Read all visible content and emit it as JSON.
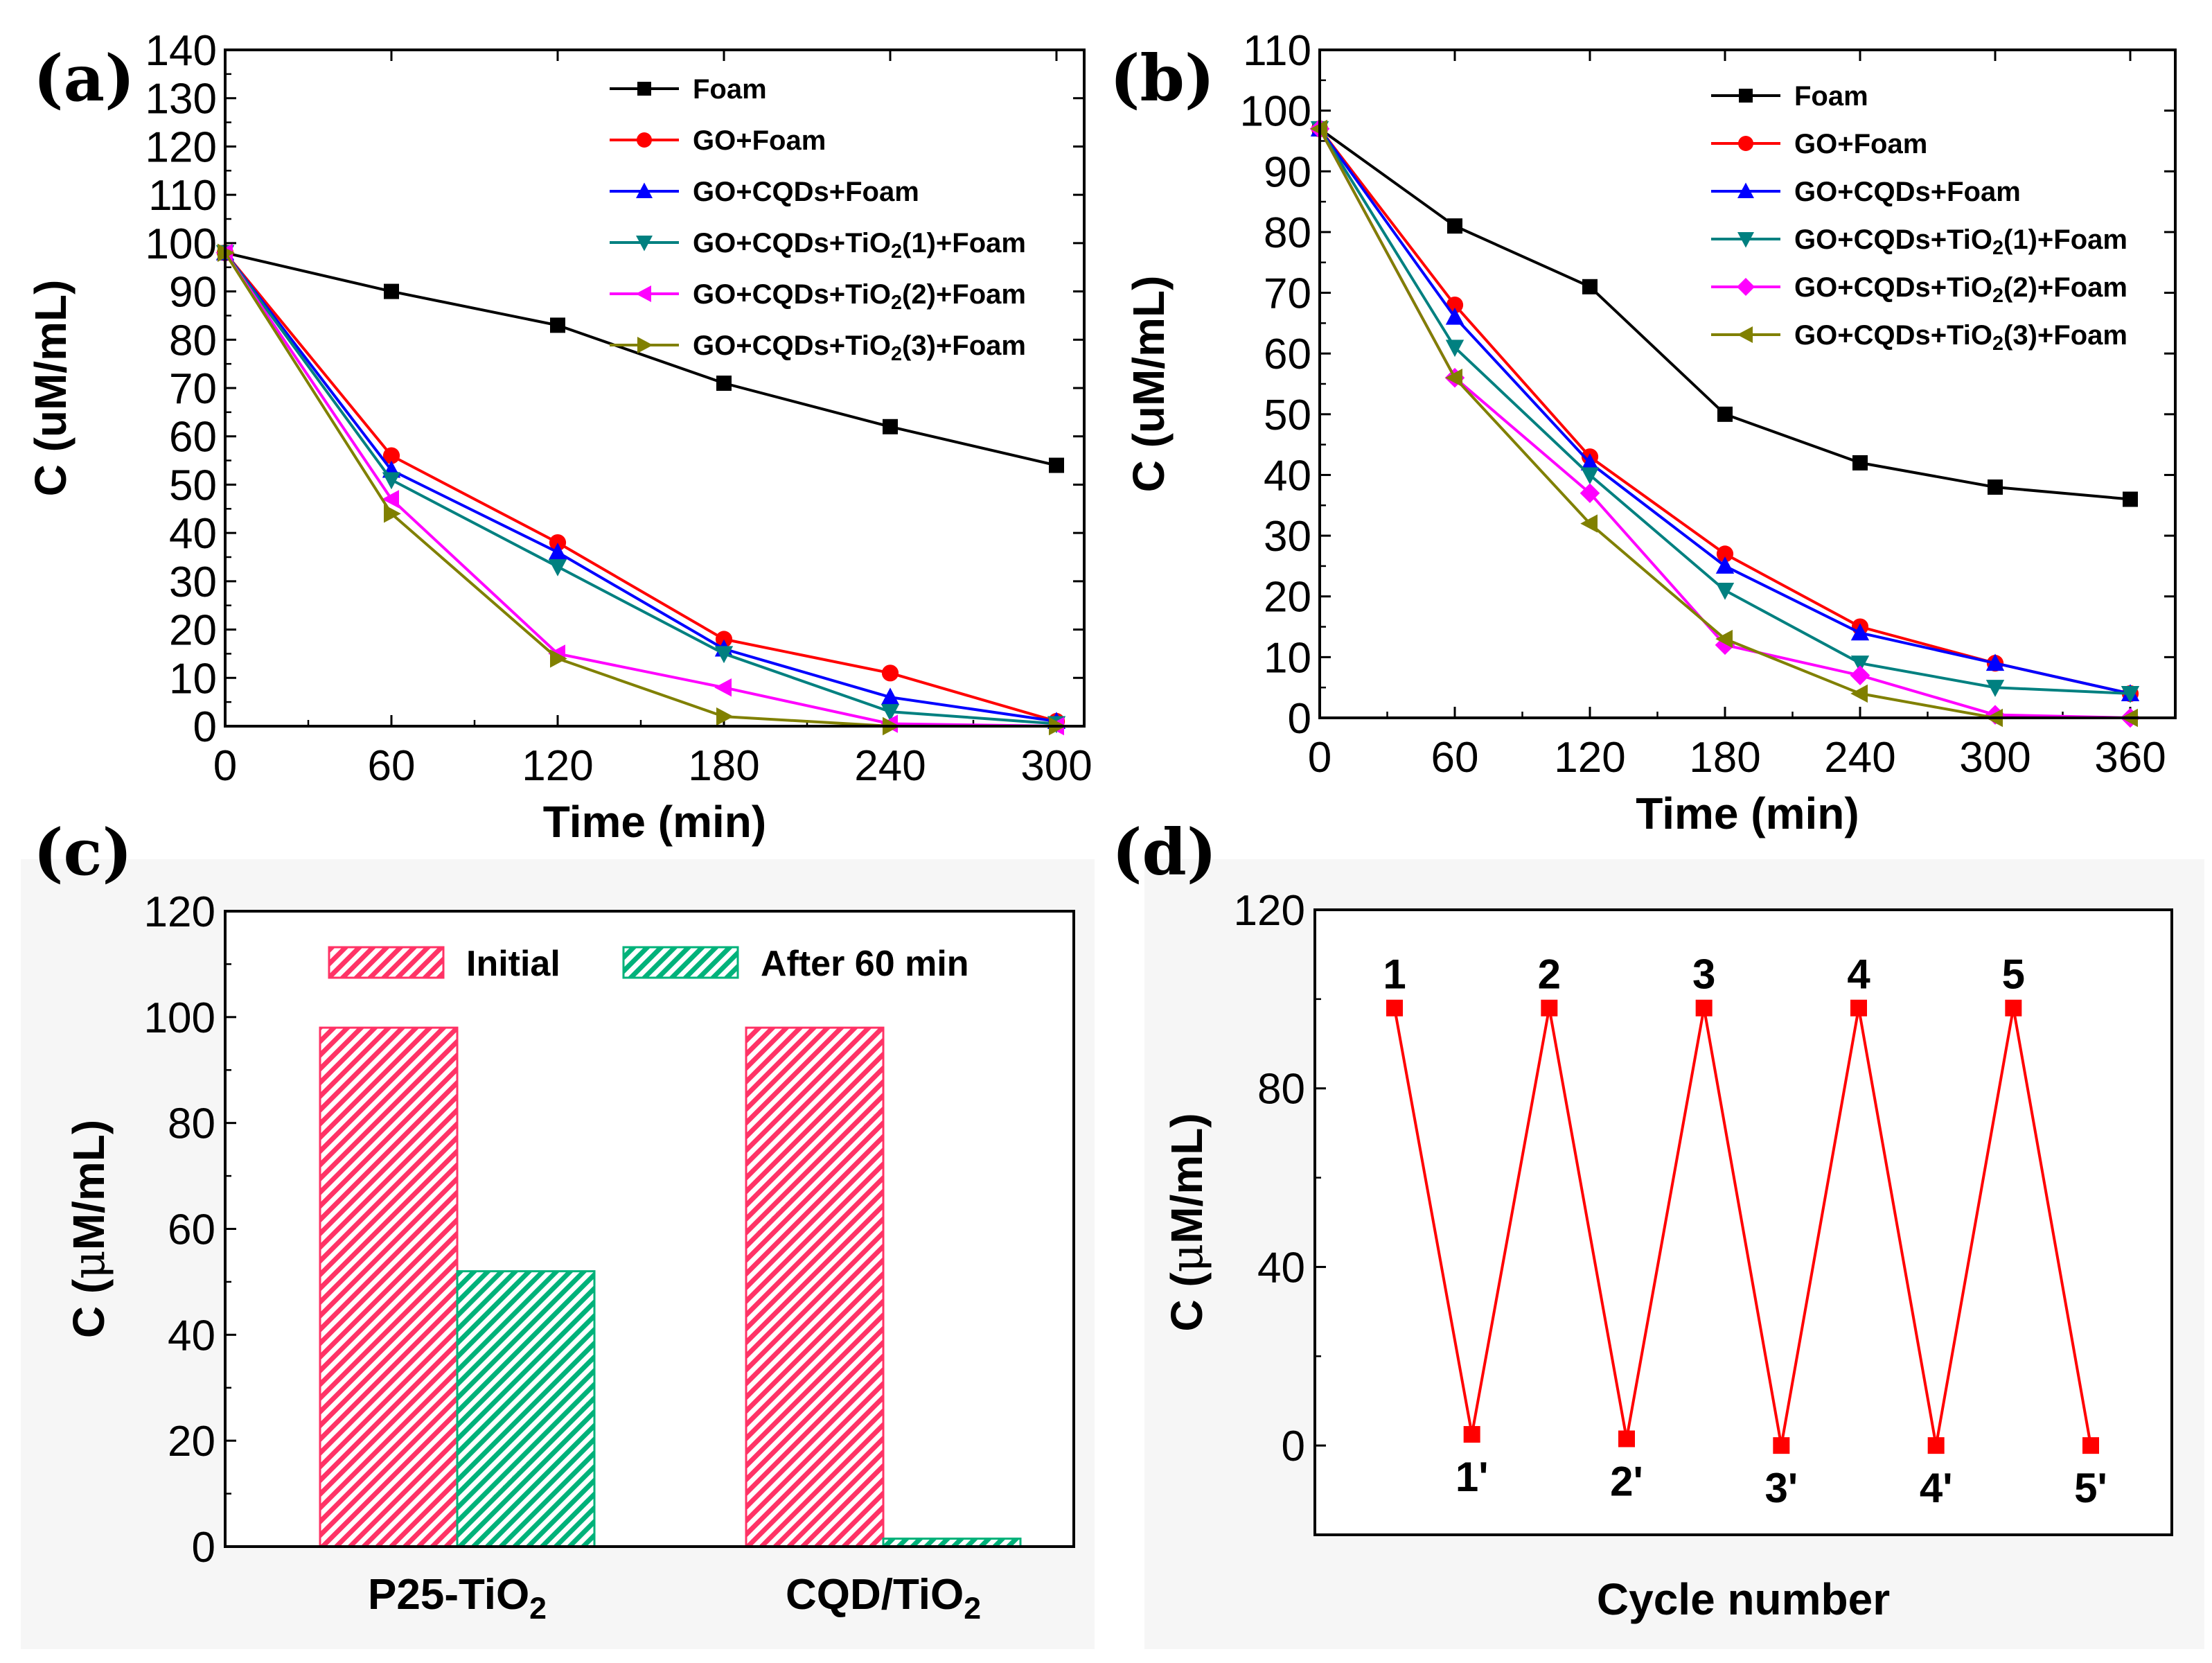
{
  "chart_data": [
    {
      "panel": "(a)",
      "type": "line",
      "xlabel": "Time (min)",
      "ylabel": "C (uM/mL)",
      "xlim": [
        0,
        310
      ],
      "ylim": [
        0,
        140
      ],
      "xticks": [
        "0",
        "60",
        "120",
        "180",
        "240",
        "300"
      ],
      "yticks": [
        "0",
        "10",
        "20",
        "30",
        "40",
        "50",
        "60",
        "70",
        "80",
        "90",
        "100",
        "110",
        "120",
        "130",
        "140"
      ],
      "x": [
        0,
        60,
        120,
        180,
        240,
        300
      ],
      "series": [
        {
          "name": "Foam",
          "color": "#000000",
          "marker": "square",
          "values": [
            98,
            90,
            83,
            71,
            62,
            54
          ]
        },
        {
          "name": "GO+Foam",
          "color": "#ff0000",
          "marker": "circle",
          "values": [
            98,
            56,
            38,
            18,
            11,
            1
          ]
        },
        {
          "name": "GO+CQDs+Foam",
          "color": "#0000ff",
          "marker": "triangle-up",
          "values": [
            98,
            53,
            36,
            16,
            6,
            1
          ]
        },
        {
          "name": "GO+CQDs+TiO2(1)+Foam",
          "label_pre": "GO+CQDs+TiO",
          "label_sub": "2",
          "label_post": "(1)+Foam",
          "color": "#008080",
          "marker": "triangle-down",
          "values": [
            98,
            51,
            33,
            15,
            3,
            0.5
          ]
        },
        {
          "name": "GO+CQDs+TiO2(2)+Foam",
          "label_pre": "GO+CQDs+TiO",
          "label_sub": "2",
          "label_post": "(2)+Foam",
          "color": "#ff00ff",
          "marker": "triangle-left",
          "values": [
            98,
            47,
            15,
            8,
            0.5,
            0
          ]
        },
        {
          "name": "GO+CQDs+TiO2(3)+Foam",
          "label_pre": "GO+CQDs+TiO",
          "label_sub": "2",
          "label_post": "(3)+Foam",
          "color": "#808000",
          "marker": "triangle-right",
          "values": [
            98,
            44,
            14,
            2,
            0,
            0
          ]
        }
      ]
    },
    {
      "panel": "(b)",
      "type": "line",
      "xlabel": "Time (min)",
      "ylabel": "C (uM/mL)",
      "xlim": [
        0,
        380
      ],
      "ylim": [
        0,
        110
      ],
      "xticks": [
        "0",
        "60",
        "120",
        "180",
        "240",
        "300",
        "360"
      ],
      "yticks": [
        "0",
        "10",
        "20",
        "30",
        "40",
        "50",
        "60",
        "70",
        "80",
        "90",
        "100",
        "110"
      ],
      "x": [
        0,
        60,
        120,
        180,
        240,
        300,
        360
      ],
      "series": [
        {
          "name": "Foam",
          "color": "#000000",
          "marker": "square",
          "values": [
            97,
            81,
            71,
            50,
            42,
            38,
            36
          ]
        },
        {
          "name": "GO+Foam",
          "color": "#ff0000",
          "marker": "circle",
          "values": [
            97,
            68,
            43,
            27,
            15,
            9,
            4
          ]
        },
        {
          "name": "GO+CQDs+Foam",
          "color": "#0000ff",
          "marker": "triangle-up",
          "values": [
            97,
            66,
            42,
            25,
            14,
            9,
            4
          ]
        },
        {
          "name": "GO+CQDs+TiO2(1)+Foam",
          "label_pre": "GO+CQDs+TiO",
          "label_sub": "2",
          "label_post": "(1)+Foam",
          "color": "#008080",
          "marker": "triangle-down",
          "values": [
            97,
            61,
            40,
            21,
            9,
            5,
            4
          ]
        },
        {
          "name": "GO+CQDs+TiO2(2)+Foam",
          "label_pre": "GO+CQDs+TiO",
          "label_sub": "2",
          "label_post": "(2)+Foam",
          "color": "#ff00ff",
          "marker": "diamond",
          "values": [
            97,
            56,
            37,
            12,
            7,
            0.5,
            0
          ]
        },
        {
          "name": "GO+CQDs+TiO2(3)+Foam",
          "label_pre": "GO+CQDs+TiO",
          "label_sub": "2",
          "label_post": "(3)+Foam",
          "color": "#808000",
          "marker": "triangle-left",
          "values": [
            97,
            56,
            32,
            13,
            4,
            0,
            0
          ]
        }
      ]
    },
    {
      "panel": "(c)",
      "type": "bar",
      "ylabel_pre": "C (",
      "ylabel_mu": "μ",
      "ylabel_post": "M/mL)",
      "ylim": [
        0,
        120
      ],
      "yticks": [
        "0",
        "20",
        "40",
        "60",
        "80",
        "100",
        "120"
      ],
      "categories": [
        {
          "pre": "P25-TiO",
          "sub": "2"
        },
        {
          "pre": "CQD/TiO",
          "sub": "2"
        }
      ],
      "series": [
        {
          "name": "Initial",
          "color": "#ff3366",
          "values": [
            98,
            98
          ]
        },
        {
          "name": "After 60 min",
          "color": "#00b27a",
          "values": [
            52,
            1.5
          ]
        }
      ]
    },
    {
      "panel": "(d)",
      "type": "line",
      "xlabel": "Cycle number",
      "ylabel_pre": "C (",
      "ylabel_mu": "μ",
      "ylabel_post": "M/mL)",
      "ylim": [
        -20,
        120
      ],
      "yticks": [
        "0",
        "40",
        "80",
        "120"
      ],
      "color": "#ff0000",
      "point_labels": [
        "1",
        "1'",
        "2",
        "2'",
        "3",
        "3'",
        "4",
        "4'",
        "5",
        "5'"
      ],
      "values": [
        98,
        2.5,
        98,
        1.5,
        98,
        0,
        98,
        0,
        98,
        0
      ]
    }
  ]
}
